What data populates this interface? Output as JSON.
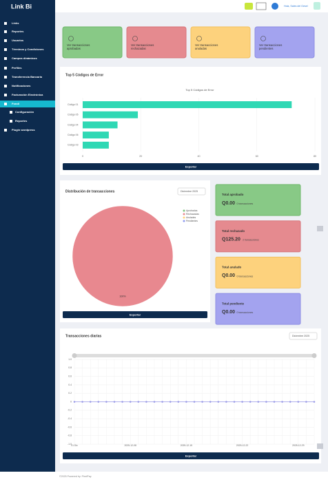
{
  "sidebar": {
    "logo": "Link Bi",
    "menu": [
      "Links",
      "Reportes",
      "Usuarios",
      "Términos y Condiciones",
      "Campos dinámicos",
      "Perfiles",
      "Transferencia Bancaria",
      "Notificaciones",
      "Facturación Electrónica",
      "Fondi",
      "Configuración",
      "Reportes",
      "Plugin wordpress"
    ]
  },
  "topbar": {
    "greeting": "Hola, Sales del Gesel"
  },
  "cards": [
    "Ver transacciones aprobadas",
    "Ver transacciones rechazadas",
    "Ver transacciones anuladas",
    "Ver transacciones pendientes"
  ],
  "panels": [
    {
      "title": "Top 5 Códigos de Error",
      "button": "Exportar"
    },
    {
      "title": "Distribución de transacciones",
      "dropdown": "Diciembre 2025",
      "button": "Exportar"
    },
    {
      "title": "Transacciones diarias",
      "dropdown": "Diciembre 2025",
      "button": "Exportar"
    }
  ],
  "summary": [
    {
      "title": "Total aprobado",
      "amount": "Q0.00",
      "count": "0 transacciones"
    },
    {
      "title": "Total rechazado",
      "amount": "Q125.20",
      "count": "2 transacciones"
    },
    {
      "title": "Total anulado",
      "amount": "Q0.00",
      "count": "0 transacciones"
    },
    {
      "title": "Total pendiente",
      "amount": "Q0.00",
      "count": "0 transacciones"
    }
  ],
  "footer": "©2025 Powered by: PixelPay",
  "chart_data": [
    {
      "type": "bar",
      "orientation": "horizontal",
      "title": "Top 5 Códigos de Error",
      "categories": [
        "Código 01",
        "Código 05",
        "Código 04",
        "Código 06",
        "Código 03"
      ],
      "values": [
        72,
        19,
        12,
        9,
        9
      ],
      "color": "#2fd8b4",
      "xlim": [
        0,
        80
      ],
      "xticks": [
        0,
        20,
        40,
        60,
        80
      ],
      "grid": true
    },
    {
      "type": "pie",
      "categories": [
        "Aprobadas",
        "Rechazadas",
        "Anuladas",
        "Pendientes"
      ],
      "values": [
        0,
        100,
        0,
        0
      ],
      "value_labels": [
        null,
        "100%",
        null,
        null
      ],
      "colors": [
        "#7dc47d",
        "#e8888f",
        "#ffd27a",
        "#8f9bef"
      ],
      "legend": "top-right"
    },
    {
      "type": "line",
      "categories": [
        "01 Dic",
        null,
        null,
        null,
        null,
        null,
        null,
        "2025-12-08",
        null,
        null,
        null,
        null,
        null,
        null,
        "2025-12-15",
        null,
        null,
        null,
        null,
        null,
        null,
        "2025-12-22",
        null,
        null,
        null,
        null,
        null,
        null,
        "2025-12-29",
        null,
        null
      ],
      "values": [
        0,
        0,
        0,
        0,
        0,
        0,
        0,
        0,
        0,
        0,
        0,
        0,
        0,
        0,
        0,
        0,
        0,
        0,
        0,
        0,
        0,
        0,
        0,
        0,
        0,
        0,
        0,
        0,
        0,
        0,
        0
      ],
      "color": "#9b9be8",
      "ylim": [
        -1,
        1
      ],
      "yticks": [
        {
          "value": 1,
          "label": "1.0"
        },
        {
          "value": 0.8,
          "label": "0.8"
        },
        {
          "value": 0.6,
          "label": "0.6"
        },
        {
          "value": 0.4,
          "label": "0.4"
        },
        {
          "value": 0.2,
          "label": "0.2"
        },
        0,
        {
          "value": -0.2,
          "label": "-0.2"
        },
        {
          "value": -0.4,
          "label": "-0.4"
        },
        {
          "value": -0.6,
          "label": "-0.6"
        },
        {
          "value": -0.8,
          "label": "-0.8"
        },
        {
          "value": -1,
          "label": "-1.0"
        }
      ],
      "grid": true
    }
  ]
}
